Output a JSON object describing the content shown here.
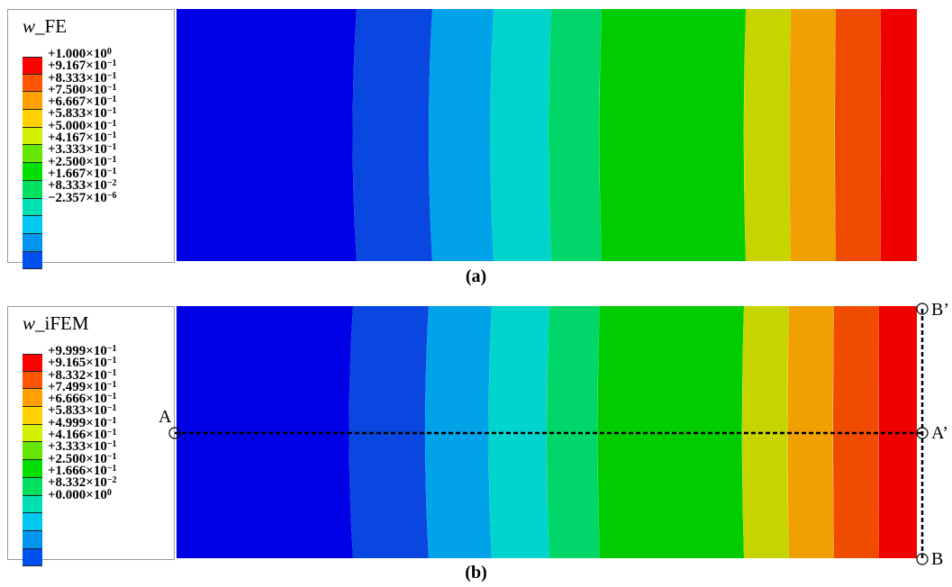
{
  "panel_a": {
    "legend_var": "w",
    "legend_suffix": "_FE",
    "legend_entries": [
      {
        "mant": "+1.000×10",
        "exp": "0"
      },
      {
        "mant": "+9.167×10",
        "exp": "−1"
      },
      {
        "mant": "+8.333×10",
        "exp": "−1"
      },
      {
        "mant": "+7.500×10",
        "exp": "−1"
      },
      {
        "mant": "+6.667×10",
        "exp": "−1"
      },
      {
        "mant": "+5.833×10",
        "exp": "−1"
      },
      {
        "mant": "+5.000×10",
        "exp": "−1"
      },
      {
        "mant": "+4.167×10",
        "exp": "−1"
      },
      {
        "mant": "+3.333×10",
        "exp": "−1"
      },
      {
        "mant": "+2.500×10",
        "exp": "−1"
      },
      {
        "mant": "+1.667×10",
        "exp": "−1"
      },
      {
        "mant": "+8.333×10",
        "exp": "−2"
      },
      {
        "mant": "−2.357×10",
        "exp": "−6"
      }
    ],
    "caption_open": "(",
    "caption_letter": "a",
    "caption_close": ")"
  },
  "panel_b": {
    "legend_var": "w",
    "legend_suffix": "_iFEM",
    "legend_entries": [
      {
        "mant": "+9.999×10",
        "exp": "−1"
      },
      {
        "mant": "+9.165×10",
        "exp": "−1"
      },
      {
        "mant": "+8.332×10",
        "exp": "−1"
      },
      {
        "mant": "+7.499×10",
        "exp": "−1"
      },
      {
        "mant": "+6.666×10",
        "exp": "−1"
      },
      {
        "mant": "+5.833×10",
        "exp": "−1"
      },
      {
        "mant": "+4.999×10",
        "exp": "−1"
      },
      {
        "mant": "+4.166×10",
        "exp": "−1"
      },
      {
        "mant": "+3.333×10",
        "exp": "−1"
      },
      {
        "mant": "+2.500×10",
        "exp": "−1"
      },
      {
        "mant": "+1.666×10",
        "exp": "−1"
      },
      {
        "mant": "+8.332×10",
        "exp": "−2"
      },
      {
        "mant": "+0.000×10",
        "exp": "0"
      }
    ],
    "caption_open": "(",
    "caption_letter": "b",
    "caption_close": ")",
    "points": {
      "A": "A",
      "A_prime": "A’",
      "B": "B",
      "B_prime": "B’"
    }
  },
  "colors": {
    "band_colors": [
      "#0000e6",
      "#0a46e0",
      "#00a2e8",
      "#00d4cc",
      "#00d66a",
      "#00cc00",
      "#c8d400",
      "#f0a000",
      "#f04c00",
      "#f00000"
    ],
    "legend_colors": [
      "#ff0000",
      "#ff5500",
      "#ffa000",
      "#ffd200",
      "#d2f000",
      "#64e600",
      "#00e000",
      "#00e060",
      "#00e0b4",
      "#00c8f0",
      "#0096f0",
      "#0050f0",
      "#0000ff"
    ],
    "line_color": "#000000"
  }
}
